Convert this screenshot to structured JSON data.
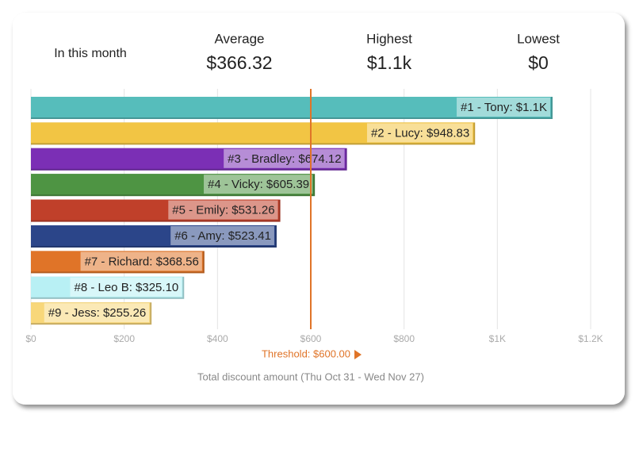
{
  "stats": {
    "caption": "In this month",
    "items": [
      {
        "label": "Average",
        "value": "$366.32"
      },
      {
        "label": "Highest",
        "value": "$1.1k"
      },
      {
        "label": "Lowest",
        "value": "$0"
      }
    ]
  },
  "chart_data": {
    "type": "bar",
    "orientation": "horizontal",
    "values": [
      1115,
      948.83,
      674.12,
      605.39,
      531.26,
      523.41,
      368.56,
      325.1,
      255.26
    ],
    "value_labels": [
      "#1 - Tony: $1.1K",
      "#2 - Lucy: $948.83",
      "#3 - Bradley: $674.12",
      "#4 - Vicky: $605.39",
      "#5 - Emily: $531.26",
      "#6 - Amy: $523.41",
      "#7 - Richard: $368.56",
      "#8 - Leo B: $325.10",
      "#9 - Jess: $255.26"
    ],
    "colors": [
      "#56bdbb",
      "#f2c544",
      "#7b2fb5",
      "#4e9443",
      "#c0402a",
      "#2b4589",
      "#e07428",
      "#b8f0f4",
      "#f8d77a"
    ],
    "xlim": [
      0,
      1200
    ],
    "xticks": [
      {
        "value": 0,
        "label": "$0"
      },
      {
        "value": 200,
        "label": "$200"
      },
      {
        "value": 400,
        "label": "$400"
      },
      {
        "value": 600,
        "label": "$600"
      },
      {
        "value": 800,
        "label": "$800"
      },
      {
        "value": 1000,
        "label": "$1K"
      },
      {
        "value": 1200,
        "label": "$1.2K"
      }
    ],
    "grid": true,
    "threshold": {
      "value": 600,
      "label": "Threshold: $600.00",
      "color": "#e07428"
    },
    "xlabel": "Total discount amount (Thu Oct 31 - Wed Nov 27)"
  }
}
